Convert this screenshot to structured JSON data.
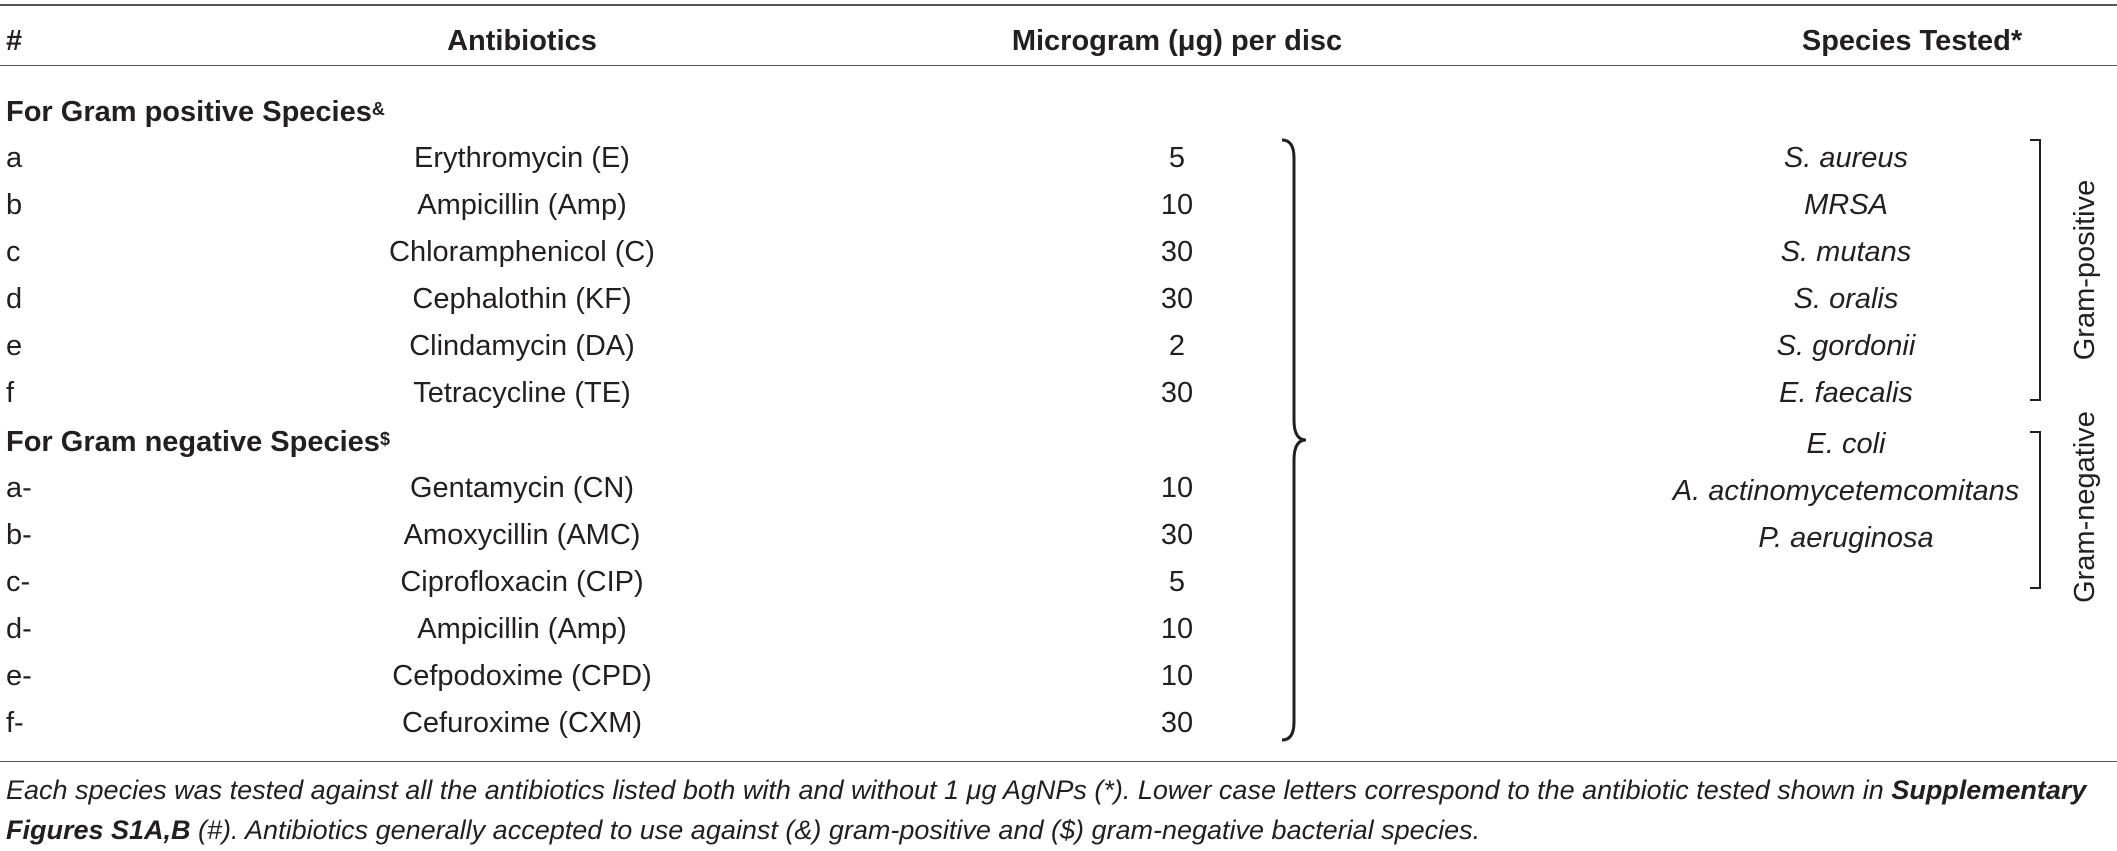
{
  "table": {
    "headers": {
      "id": "#",
      "antibiotics": "Antibiotics",
      "microgram": "Microgram (μg) per disc",
      "species": "Species Tested*"
    },
    "gram_positive_section": {
      "label": "For Gram positive Species",
      "sup": "&"
    },
    "gram_positive_rows": [
      {
        "id": "a",
        "antibiotic": "Erythromycin (E)",
        "microgram": "5"
      },
      {
        "id": "b",
        "antibiotic": "Ampicillin (Amp)",
        "microgram": "10"
      },
      {
        "id": "c",
        "antibiotic": "Chloramphenicol (C)",
        "microgram": "30"
      },
      {
        "id": "d",
        "antibiotic": "Cephalothin (KF)",
        "microgram": "30"
      },
      {
        "id": "e",
        "antibiotic": "Clindamycin (DA)",
        "microgram": "2"
      },
      {
        "id": "f",
        "antibiotic": "Tetracycline (TE)",
        "microgram": "30"
      }
    ],
    "gram_negative_section": {
      "label": "For Gram negative Species",
      "sup": "$"
    },
    "gram_negative_rows": [
      {
        "id": "a-",
        "antibiotic": "Gentamycin (CN)",
        "microgram": "10"
      },
      {
        "id": "b-",
        "antibiotic": "Amoxycillin (AMC)",
        "microgram": "30"
      },
      {
        "id": "c-",
        "antibiotic": "Ciprofloxacin (CIP)",
        "microgram": "5"
      },
      {
        "id": "d-",
        "antibiotic": "Ampicillin (Amp)",
        "microgram": "10"
      },
      {
        "id": "e-",
        "antibiotic": "Cefpodoxime (CPD)",
        "microgram": "10"
      },
      {
        "id": "f-",
        "antibiotic": "Cefuroxime (CXM)",
        "microgram": "30"
      }
    ],
    "species": {
      "gram_positive_label": "Gram-positive",
      "gram_positive": [
        "S. aureus",
        "MRSA",
        "S. mutans",
        "S. oralis",
        "S. gordonii",
        "E. faecalis"
      ],
      "gram_negative_label": "Gram-negative",
      "gram_negative": [
        "E. coli",
        "A. actinomycetemcomitans",
        "P. aeruginosa"
      ]
    }
  },
  "footnote": {
    "part1": "Each species was tested against all the antibiotics listed both with and without 1 μg AgNPs (*). Lower case letters correspond to the antibiotic tested shown in ",
    "bold": "Supplementary Figures S1A,B",
    "part2": " (#). Antibiotics generally accepted to use against (&) gram-positive and ($) gram-negative bacterial species."
  }
}
